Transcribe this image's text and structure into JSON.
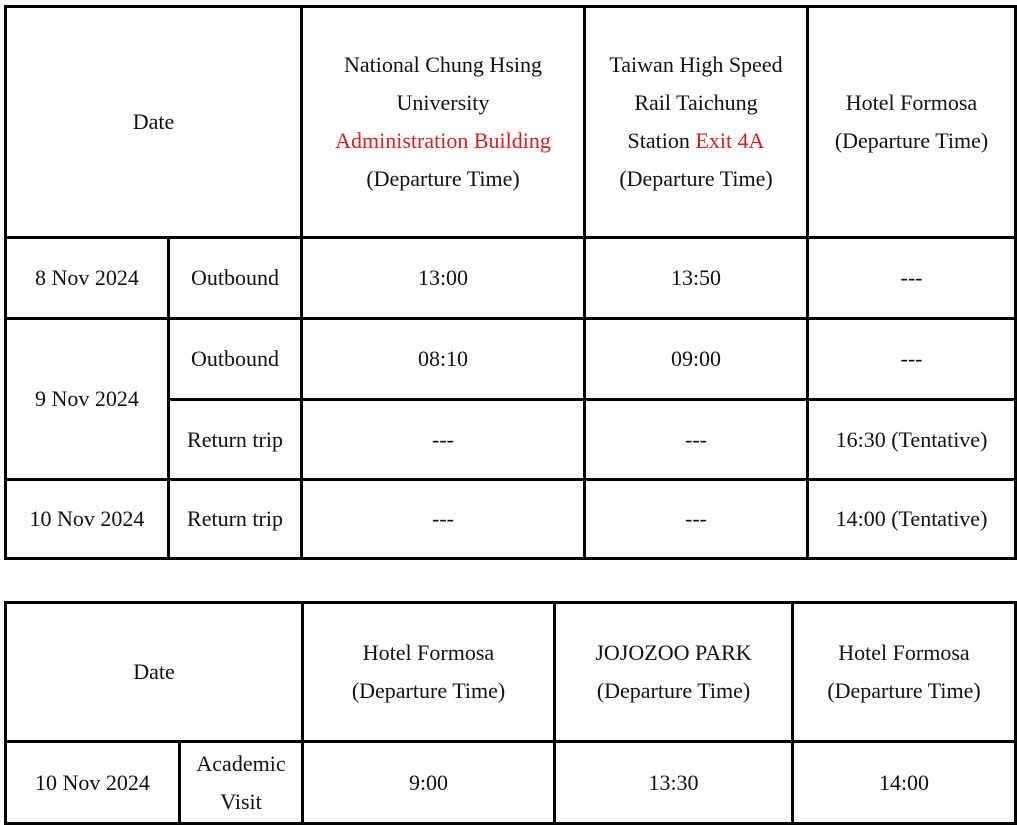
{
  "accent_color": "#d42020",
  "table1": {
    "date_header": "Date",
    "col1": {
      "line1": "National Chung Hsing",
      "line2": "University",
      "highlight": "Administration Building",
      "line4": "(Departure Time)"
    },
    "col2": {
      "line1": "Taiwan High Speed",
      "line2": "Rail Taichung",
      "prefix": "Station ",
      "highlight": "Exit 4A",
      "line4": "(Departure Time)"
    },
    "col3": {
      "line1": "Hotel Formosa",
      "line2": "(Departure Time)"
    },
    "rows": [
      {
        "date": "8 Nov 2024",
        "trip": "Outbound",
        "c1": "13:00",
        "c2": "13:50",
        "c3": "---"
      },
      {
        "date": "9 Nov 2024",
        "trip": "Outbound",
        "c1": "08:10",
        "c2": "09:00",
        "c3": "---"
      },
      {
        "trip": "Return trip",
        "c1": "---",
        "c2": "---",
        "c3": "16:30 (Tentative)"
      },
      {
        "date": "10 Nov 2024",
        "trip": "Return trip",
        "c1": "---",
        "c2": "---",
        "c3": "14:00 (Tentative)"
      }
    ]
  },
  "table2": {
    "date_header": "Date",
    "cols": [
      {
        "line1": "Hotel Formosa",
        "line2": "(Departure Time)"
      },
      {
        "line1": "JOJOZOO PARK",
        "line2": "(Departure Time)"
      },
      {
        "line1": "Hotel Formosa",
        "line2": "(Departure Time)"
      }
    ],
    "rows": [
      {
        "date": "10 Nov 2024",
        "trip_line1": "Academic",
        "trip_line2": "Visit",
        "c1": "9:00",
        "c2": "13:30",
        "c3": "14:00"
      }
    ]
  }
}
